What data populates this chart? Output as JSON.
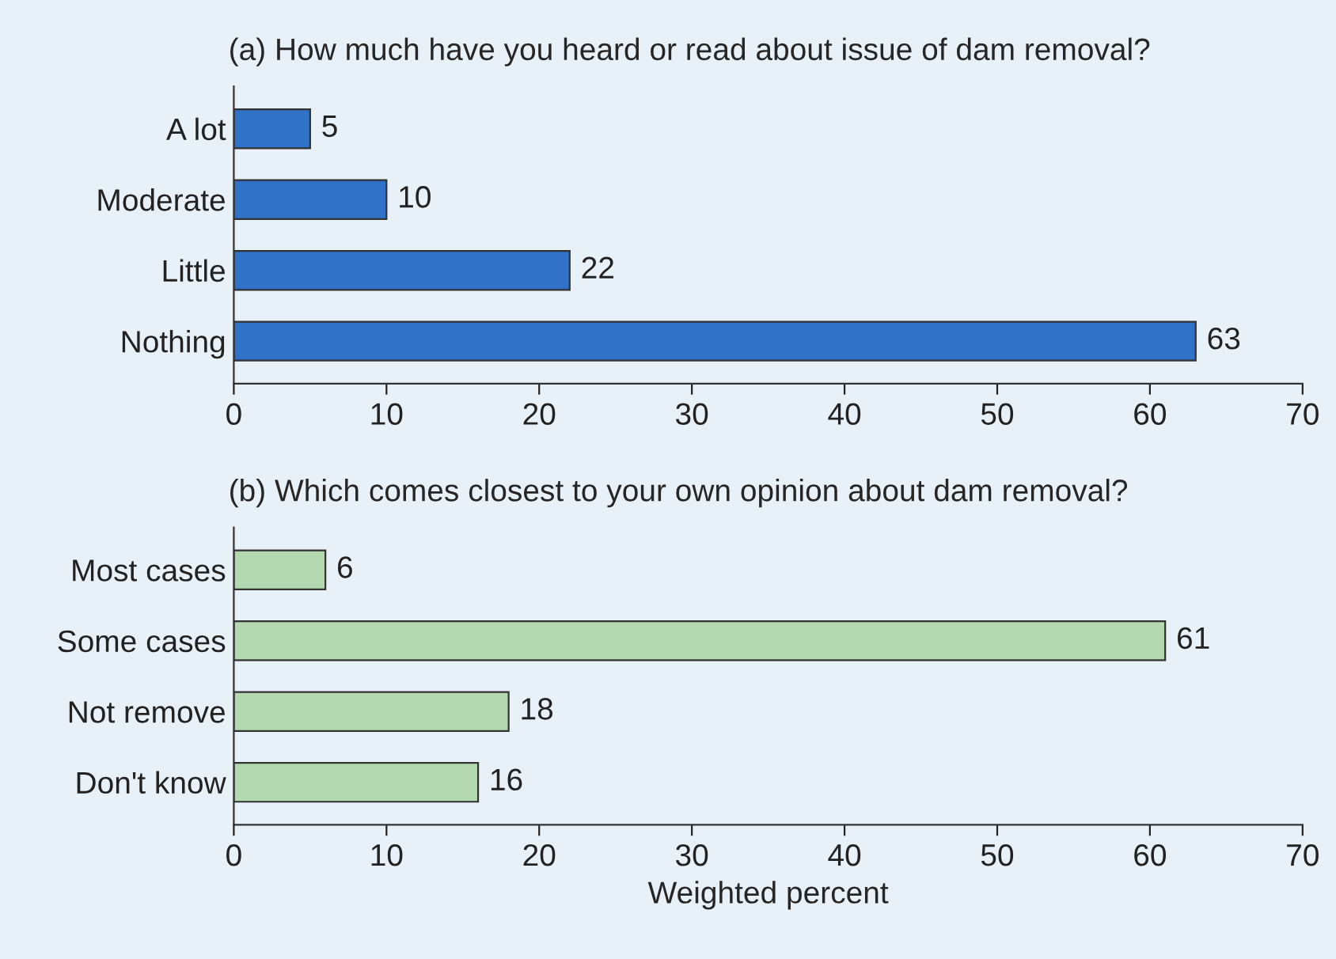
{
  "chart_data": [
    {
      "type": "bar",
      "orientation": "horizontal",
      "title": "(a) How much have you heard or read about issue of dam removal?",
      "categories": [
        "A lot",
        "Moderate",
        "Little",
        "Nothing"
      ],
      "values": [
        5,
        10,
        22,
        63
      ],
      "color": "#2f72c8",
      "xlim": [
        0,
        70
      ],
      "xticks": [
        0,
        10,
        20,
        30,
        40,
        50,
        60,
        70
      ],
      "data_labels": true,
      "grid": false
    },
    {
      "type": "bar",
      "orientation": "horizontal",
      "title": "(b) Which comes closest to your own opinion about dam removal?",
      "xlabel": "Weighted percent",
      "categories": [
        "Most cases",
        "Some cases",
        "Not remove",
        "Don't know"
      ],
      "values": [
        6,
        61,
        18,
        16
      ],
      "color": "#b4d9b0",
      "xlim": [
        0,
        70
      ],
      "xticks": [
        0,
        10,
        20,
        30,
        40,
        50,
        60,
        70
      ],
      "data_labels": true,
      "grid": false
    }
  ]
}
